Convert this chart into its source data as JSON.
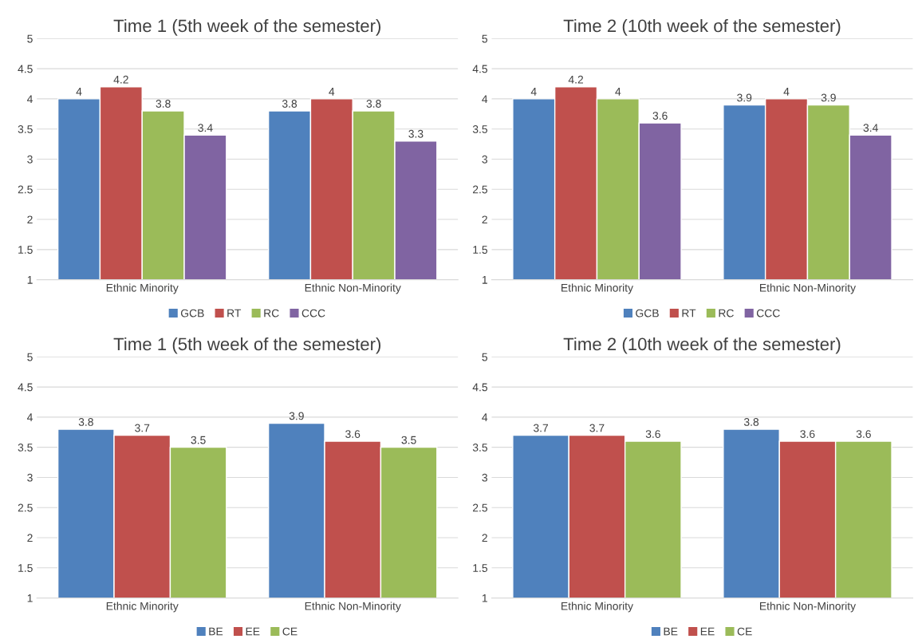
{
  "chart_data": [
    {
      "type": "bar",
      "title": "Time 1 (5th week of the semester)",
      "categories": [
        "Ethnic Minority",
        "Ethnic Non-Minority"
      ],
      "series": [
        {
          "name": "GCB",
          "color": "#4f81bd",
          "values": [
            4,
            3.8
          ]
        },
        {
          "name": "RT",
          "color": "#c0504d",
          "values": [
            4.2,
            4
          ]
        },
        {
          "name": "RC",
          "color": "#9bbb59",
          "values": [
            3.8,
            3.8
          ]
        },
        {
          "name": "CCC",
          "color": "#8064a2",
          "values": [
            3.4,
            3.3
          ]
        }
      ],
      "ylim": [
        1,
        5
      ],
      "yticks": [
        1,
        1.5,
        2,
        2.5,
        3,
        3.5,
        4,
        4.5,
        5
      ],
      "grid": "y",
      "legend": "bottom",
      "data_labels": true
    },
    {
      "type": "bar",
      "title": "Time 2 (10th week of the semester)",
      "categories": [
        "Ethnic Minority",
        "Ethnic Non-Minority"
      ],
      "series": [
        {
          "name": "GCB",
          "color": "#4f81bd",
          "values": [
            4,
            3.9
          ]
        },
        {
          "name": "RT",
          "color": "#c0504d",
          "values": [
            4.2,
            4
          ]
        },
        {
          "name": "RC",
          "color": "#9bbb59",
          "values": [
            4,
            3.9
          ]
        },
        {
          "name": "CCC",
          "color": "#8064a2",
          "values": [
            3.6,
            3.4
          ]
        }
      ],
      "ylim": [
        1,
        5
      ],
      "yticks": [
        1,
        1.5,
        2,
        2.5,
        3,
        3.5,
        4,
        4.5,
        5
      ],
      "grid": "y",
      "legend": "bottom",
      "data_labels": true
    },
    {
      "type": "bar",
      "title": "Time 1 (5th week of the semester)",
      "categories": [
        "Ethnic Minority",
        "Ethnic Non-Minority"
      ],
      "series": [
        {
          "name": "BE",
          "color": "#4f81bd",
          "values": [
            3.8,
            3.9
          ]
        },
        {
          "name": "EE",
          "color": "#c0504d",
          "values": [
            3.7,
            3.6
          ]
        },
        {
          "name": "CE",
          "color": "#9bbb59",
          "values": [
            3.5,
            3.5
          ]
        }
      ],
      "ylim": [
        1,
        5
      ],
      "yticks": [
        1,
        1.5,
        2,
        2.5,
        3,
        3.5,
        4,
        4.5,
        5
      ],
      "grid": "y",
      "legend": "bottom",
      "data_labels": true
    },
    {
      "type": "bar",
      "title": "Time 2 (10th week of the semester)",
      "categories": [
        "Ethnic Minority",
        "Ethnic Non-Minority"
      ],
      "series": [
        {
          "name": "BE",
          "color": "#4f81bd",
          "values": [
            3.7,
            3.8
          ]
        },
        {
          "name": "EE",
          "color": "#c0504d",
          "values": [
            3.7,
            3.6
          ]
        },
        {
          "name": "CE",
          "color": "#9bbb59",
          "values": [
            3.6,
            3.6
          ]
        }
      ],
      "ylim": [
        1,
        5
      ],
      "yticks": [
        1,
        1.5,
        2,
        2.5,
        3,
        3.5,
        4,
        4.5,
        5
      ],
      "grid": "y",
      "legend": "bottom",
      "data_labels": true
    }
  ]
}
